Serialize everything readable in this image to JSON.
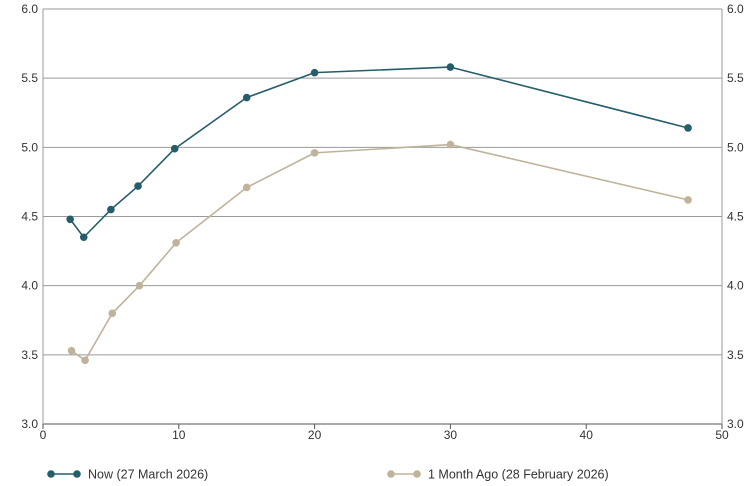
{
  "chart_data": {
    "type": "line",
    "title": "",
    "xlabel": "",
    "ylabel": "",
    "xlim": [
      0,
      50
    ],
    "ylim": [
      3.0,
      6.0
    ],
    "x_ticks": [
      "0",
      "10",
      "20",
      "30",
      "40",
      "50"
    ],
    "y_ticks": [
      "3.0",
      "3.5",
      "4.0",
      "4.5",
      "5.0",
      "5.5",
      "6.0"
    ],
    "grid": "horizontal",
    "legend_position": "bottom",
    "series": [
      {
        "name": "Now (27 March 2026)",
        "color": "#265d6b",
        "points": [
          {
            "x": 2,
            "y": 4.48
          },
          {
            "x": 3,
            "y": 4.35
          },
          {
            "x": 5,
            "y": 4.55
          },
          {
            "x": 7,
            "y": 4.72
          },
          {
            "x": 9.7,
            "y": 4.99
          },
          {
            "x": 15,
            "y": 5.36
          },
          {
            "x": 20,
            "y": 5.54
          },
          {
            "x": 30,
            "y": 5.58
          },
          {
            "x": 47.5,
            "y": 5.14
          }
        ]
      },
      {
        "name": "1 Month Ago (28 February 2026)",
        "color": "#bfb39b",
        "points": [
          {
            "x": 2.1,
            "y": 3.53
          },
          {
            "x": 3.1,
            "y": 3.46
          },
          {
            "x": 5.1,
            "y": 3.8
          },
          {
            "x": 7.1,
            "y": 4.0
          },
          {
            "x": 9.8,
            "y": 4.31
          },
          {
            "x": 15,
            "y": 4.71
          },
          {
            "x": 20,
            "y": 4.96
          },
          {
            "x": 30,
            "y": 5.02
          },
          {
            "x": 47.5,
            "y": 4.62
          }
        ]
      }
    ]
  }
}
